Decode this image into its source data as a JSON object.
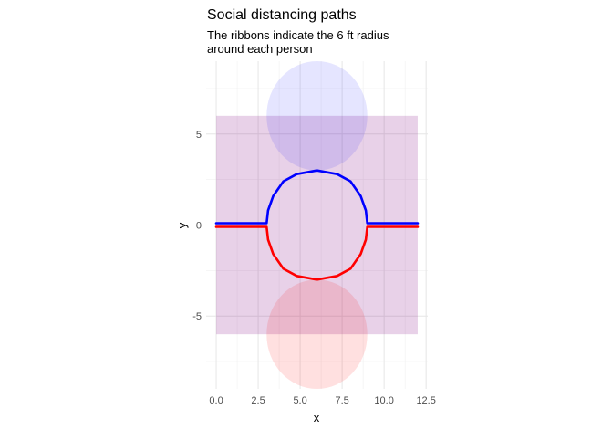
{
  "chart_data": {
    "type": "line",
    "title": "Social distancing paths",
    "subtitle_lines": [
      "The ribbons indicate the 6 ft radius",
      "around each person"
    ],
    "xlabel": "x",
    "ylabel": "y",
    "xlim": [
      -0.6,
      12.6
    ],
    "ylim": [
      -9,
      9
    ],
    "x_ticks": [
      0,
      2.5,
      5,
      7.5,
      10,
      12.5
    ],
    "x_tick_labels": [
      "0.0",
      "2.5",
      "5.0",
      "7.5",
      "10.0",
      "12.5"
    ],
    "y_ticks": [
      -5,
      0,
      5
    ],
    "y_tick_labels": [
      "-5",
      "0",
      "5"
    ],
    "grid": true,
    "legend": "none",
    "ribbons": [
      {
        "x_range": [
          0,
          12
        ],
        "y_range": [
          -6,
          6
        ],
        "color": "#800080",
        "opacity": 0.18
      },
      {
        "circle_center": [
          6,
          6
        ],
        "radius": 3,
        "color": "#0000ff",
        "opacity": 0.1
      },
      {
        "circle_center": [
          6,
          -6
        ],
        "radius": 3,
        "color": "#ff0000",
        "opacity": 0.12
      }
    ],
    "series": [
      {
        "color": "#0000ff",
        "x": [
          0,
          3,
          3.09,
          3.4,
          4.0,
          4.8,
          6.0,
          7.2,
          8.0,
          8.6,
          8.91,
          9,
          12
        ],
        "y": [
          0.1,
          0.1,
          0.8,
          1.6,
          2.4,
          2.8,
          3.0,
          2.8,
          2.4,
          1.6,
          0.8,
          0.1,
          0.1
        ]
      },
      {
        "color": "#ff0000",
        "x": [
          0,
          3,
          3.09,
          3.4,
          4.0,
          4.8,
          6.0,
          7.2,
          8.0,
          8.6,
          8.91,
          9,
          12
        ],
        "y": [
          -0.1,
          -0.1,
          -0.8,
          -1.6,
          -2.4,
          -2.8,
          -3.0,
          -2.8,
          -2.4,
          -1.6,
          -0.8,
          -0.1,
          -0.1
        ]
      }
    ]
  }
}
